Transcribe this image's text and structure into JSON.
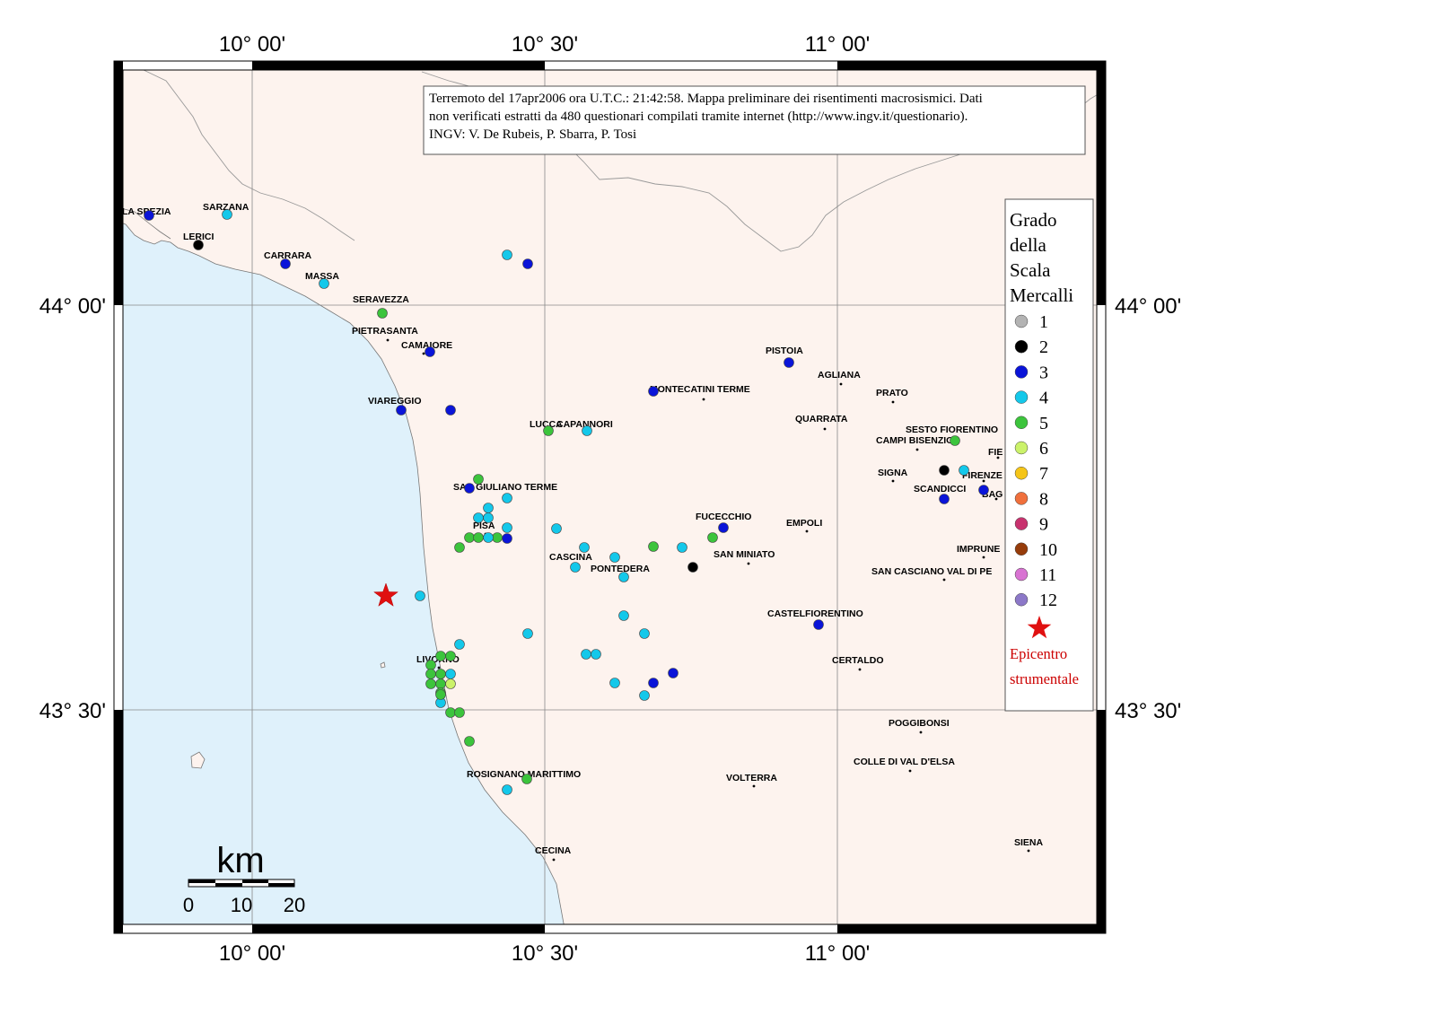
{
  "map": {
    "info_box": {
      "lines": [
        "Terremoto del 17apr2006 ora U.T.C.: 21:42:58.  Mappa preliminare dei risentimenti macrosismici.  Dati",
        "non verificati estratti da 480 questionari compilati tramite internet (http://www.ingv.it/questionario).",
        "INGV: V.  De Rubeis, P.  Sbarra, P.  Tosi"
      ]
    },
    "longitude_labels": [
      "10° 00'",
      "10° 30'",
      "11° 00'"
    ],
    "latitude_labels": [
      "44° 00'",
      "43° 30'"
    ],
    "legend": {
      "title_lines": [
        "Grado",
        "della",
        "Scala",
        "Mercalli"
      ],
      "grades": [
        {
          "label": "1",
          "color": "#b3b3b3"
        },
        {
          "label": "2",
          "color": "#000000"
        },
        {
          "label": "3",
          "color": "#0a14d8"
        },
        {
          "label": "4",
          "color": "#14c8ea"
        },
        {
          "label": "5",
          "color": "#3cc43c"
        },
        {
          "label": "6",
          "color": "#cbf26a"
        },
        {
          "label": "7",
          "color": "#f5c518"
        },
        {
          "label": "8",
          "color": "#f0703c"
        },
        {
          "label": "9",
          "color": "#c8326e"
        },
        {
          "label": "10",
          "color": "#963c0a"
        },
        {
          "label": "11",
          "color": "#d873d2"
        },
        {
          "label": "12",
          "color": "#8c78c8"
        }
      ],
      "epicenter_lines": [
        "Epicentro",
        "strumentale"
      ],
      "epicenter_color": "#e01010"
    },
    "scale_bar": {
      "unit": "km",
      "ticks": [
        "0",
        "10",
        "20"
      ]
    },
    "towns": [
      {
        "name": "LA SPEZIA"
      },
      {
        "name": "SARZANA"
      },
      {
        "name": "LERICI"
      },
      {
        "name": "CARRARA"
      },
      {
        "name": "MASSA"
      },
      {
        "name": "SERAVEZZA"
      },
      {
        "name": "PIETRASANTA"
      },
      {
        "name": "CAMAIORE"
      },
      {
        "name": "VIAREGGIO"
      },
      {
        "name": "LUCCA"
      },
      {
        "name": "CAPANNORI"
      },
      {
        "name": "SAN GIULIANO TERME"
      },
      {
        "name": "PISA"
      },
      {
        "name": "CASCINA"
      },
      {
        "name": "PONTEDERA"
      },
      {
        "name": "LIVORNO"
      },
      {
        "name": "ROSIGNANO MARITTIMO"
      },
      {
        "name": "CECINA"
      },
      {
        "name": "VOLTERRA"
      },
      {
        "name": "FUCECCHIO"
      },
      {
        "name": "SAN MINIATO"
      },
      {
        "name": "EMPOLI"
      },
      {
        "name": "CASTELFIORENTINO"
      },
      {
        "name": "CERTALDO"
      },
      {
        "name": "POGGIBONSI"
      },
      {
        "name": "COLLE DI VAL D'ELSA"
      },
      {
        "name": "SIENA"
      },
      {
        "name": "PISTOIA"
      },
      {
        "name": "MONTECATINI TERME"
      },
      {
        "name": "AGLIANA"
      },
      {
        "name": "PRATO"
      },
      {
        "name": "QUARRATA"
      },
      {
        "name": "SESTO FIORENTINO"
      },
      {
        "name": "CAMPI BISENZIO"
      },
      {
        "name": "SIGNA"
      },
      {
        "name": "SCANDICCI"
      },
      {
        "name": "FIRENZE"
      },
      {
        "name": "BAG"
      },
      {
        "name": "FIE"
      },
      {
        "name": "IMPRUNE"
      },
      {
        "name": "SAN CASCIANO VAL DI PE"
      }
    ],
    "observations": [
      {
        "grade": 3
      },
      {
        "grade": 4
      },
      {
        "grade": 2
      },
      {
        "grade": 3
      },
      {
        "grade": 4
      },
      {
        "grade": 5
      },
      {
        "grade": 3
      },
      {
        "grade": 3
      },
      {
        "grade": 3
      },
      {
        "grade": 4
      },
      {
        "grade": 3
      },
      {
        "grade": 3
      },
      {
        "grade": 3
      },
      {
        "grade": 4
      },
      {
        "grade": 5
      },
      {
        "grade": 3
      },
      {
        "grade": 4
      },
      {
        "grade": 4
      },
      {
        "grade": 4
      },
      {
        "grade": 4
      },
      {
        "grade": 4
      },
      {
        "grade": 3
      },
      {
        "grade": 4
      },
      {
        "grade": 5
      },
      {
        "grade": 5
      },
      {
        "grade": 5
      },
      {
        "grade": 5
      },
      {
        "grade": 5
      },
      {
        "grade": 4
      },
      {
        "grade": 4
      },
      {
        "grade": 4
      },
      {
        "grade": 4
      },
      {
        "grade": 4
      },
      {
        "grade": 5
      },
      {
        "grade": 2
      },
      {
        "grade": 4
      },
      {
        "grade": 5
      },
      {
        "grade": 3
      },
      {
        "grade": 4
      },
      {
        "grade": 4
      },
      {
        "grade": 4
      },
      {
        "grade": 4
      },
      {
        "grade": 4
      },
      {
        "grade": 4
      },
      {
        "grade": 4
      },
      {
        "grade": 4
      },
      {
        "grade": 3
      },
      {
        "grade": 3
      },
      {
        "grade": 5
      },
      {
        "grade": 5
      },
      {
        "grade": 4
      },
      {
        "grade": 5
      },
      {
        "grade": 5
      },
      {
        "grade": 5
      },
      {
        "grade": 5
      },
      {
        "grade": 5
      },
      {
        "grade": 4
      },
      {
        "grade": 5
      },
      {
        "grade": 5
      },
      {
        "grade": 6
      },
      {
        "grade": 4
      },
      {
        "grade": 5
      },
      {
        "grade": 5
      },
      {
        "grade": 5
      },
      {
        "grade": 5
      },
      {
        "grade": 4
      },
      {
        "grade": 2
      },
      {
        "grade": 4
      },
      {
        "grade": 3
      },
      {
        "grade": 3
      },
      {
        "grade": 5
      },
      {
        "grade": 3
      }
    ],
    "epicenter_marker": "epicenter-star"
  }
}
